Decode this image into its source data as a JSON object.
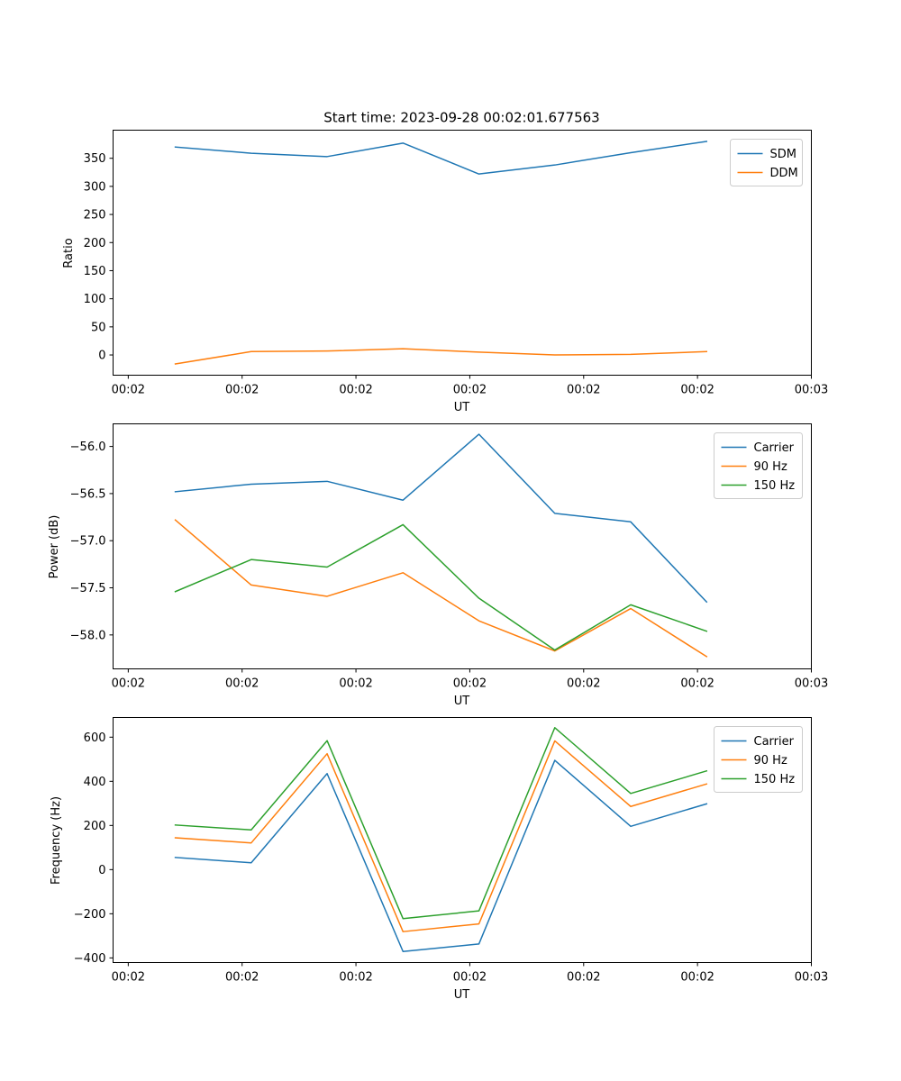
{
  "figure": {
    "title": "Start time: 2023-09-28 00:02:01.677563",
    "colors": {
      "blue": "#1f77b4",
      "orange": "#ff7f0e",
      "green": "#2ca02c",
      "frame": "#000000",
      "legend_edge": "#cccccc"
    }
  },
  "chart_data": [
    {
      "type": "line",
      "title": "Start time: 2023-09-28 00:02:01.677563",
      "xlabel": "UT",
      "ylabel": "Ratio",
      "x": [
        1,
        2,
        3,
        4,
        5,
        6,
        7,
        8
      ],
      "xlim": [
        0.18,
        9.38
      ],
      "xticks": [
        0.38,
        1.88,
        3.38,
        4.88,
        6.38,
        7.88,
        9.38
      ],
      "xtick_labels": [
        "00:02",
        "00:02",
        "00:02",
        "00:02",
        "00:02",
        "00:02",
        "00:03"
      ],
      "ylim": [
        -36,
        400
      ],
      "yticks": [
        0,
        50,
        100,
        150,
        200,
        250,
        300,
        350
      ],
      "ytick_labels": [
        "0",
        "50",
        "100",
        "150",
        "200",
        "250",
        "300",
        "350"
      ],
      "legend": "top-right",
      "series": [
        {
          "name": "SDM",
          "color": "#1f77b4",
          "values": [
            370,
            359,
            353,
            377,
            322,
            338,
            360,
            380
          ]
        },
        {
          "name": "DDM",
          "color": "#ff7f0e",
          "values": [
            -16,
            6,
            7,
            11,
            5,
            0,
            1,
            6
          ]
        }
      ]
    },
    {
      "type": "line",
      "title": "",
      "xlabel": "UT",
      "ylabel": "Power (dB)",
      "x": [
        1,
        2,
        3,
        4,
        5,
        6,
        7,
        8
      ],
      "xlim": [
        0.18,
        9.38
      ],
      "xticks": [
        0.38,
        1.88,
        3.38,
        4.88,
        6.38,
        7.88,
        9.38
      ],
      "xtick_labels": [
        "00:02",
        "00:02",
        "00:02",
        "00:02",
        "00:02",
        "00:02",
        "00:03"
      ],
      "ylim": [
        -58.36,
        -55.76
      ],
      "yticks": [
        -58.0,
        -57.5,
        -57.0,
        -56.5,
        -56.0
      ],
      "ytick_labels": [
        "−58.0",
        "−57.5",
        "−57.0",
        "−56.5",
        "−56.0"
      ],
      "legend": "top-right",
      "series": [
        {
          "name": "Carrier",
          "color": "#1f77b4",
          "values": [
            -56.48,
            -56.4,
            -56.37,
            -56.57,
            -55.87,
            -56.71,
            -56.8,
            -57.65
          ]
        },
        {
          "name": "90 Hz",
          "color": "#ff7f0e",
          "values": [
            -56.78,
            -57.47,
            -57.59,
            -57.34,
            -57.85,
            -58.17,
            -57.72,
            -58.23
          ]
        },
        {
          "name": "150 Hz",
          "color": "#2ca02c",
          "values": [
            -57.54,
            -57.2,
            -57.28,
            -56.83,
            -57.61,
            -58.16,
            -57.68,
            -57.96
          ]
        }
      ]
    },
    {
      "type": "line",
      "title": "",
      "xlabel": "UT",
      "ylabel": "Frequency (Hz)",
      "x": [
        1,
        2,
        3,
        4,
        5,
        6,
        7,
        8
      ],
      "xlim": [
        0.18,
        9.38
      ],
      "xticks": [
        0.38,
        1.88,
        3.38,
        4.88,
        6.38,
        7.88,
        9.38
      ],
      "xtick_labels": [
        "00:02",
        "00:02",
        "00:02",
        "00:02",
        "00:02",
        "00:02",
        "00:03"
      ],
      "ylim": [
        -421,
        689
      ],
      "yticks": [
        -400,
        -200,
        0,
        200,
        400,
        600
      ],
      "ytick_labels": [
        "−400",
        "−200",
        "0",
        "200",
        "400",
        "600"
      ],
      "legend": "top-right",
      "series": [
        {
          "name": "Carrier",
          "color": "#1f77b4",
          "values": [
            55,
            31,
            435,
            -371,
            -337,
            495,
            196,
            298
          ]
        },
        {
          "name": "90 Hz",
          "color": "#ff7f0e",
          "values": [
            144,
            121,
            525,
            -281,
            -246,
            583,
            286,
            388
          ]
        },
        {
          "name": "150 Hz",
          "color": "#2ca02c",
          "values": [
            202,
            180,
            584,
            -222,
            -187,
            643,
            345,
            447
          ]
        }
      ]
    }
  ]
}
